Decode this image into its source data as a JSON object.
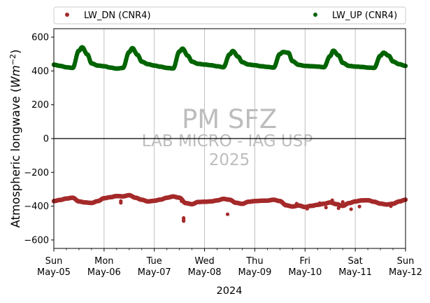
{
  "chart_data": {
    "type": "scatter",
    "xlabel": "2024",
    "ylabel_prefix": "Atmospheric longwave (",
    "ylabel_unit_w": "W",
    "ylabel_unit_m": "m",
    "ylabel_unit_exp": "−2",
    "ylabel_suffix": ")",
    "ylim": [
      -650,
      650
    ],
    "yticks": [
      -600,
      -400,
      -200,
      0,
      200,
      400,
      600
    ],
    "xlim": [
      "2024-05-05",
      "2024-05-12"
    ],
    "xticks": [
      {
        "day": "Sun",
        "date": "May-05"
      },
      {
        "day": "Mon",
        "date": "May-06"
      },
      {
        "day": "Tue",
        "date": "May-07"
      },
      {
        "day": "Wed",
        "date": "May-08"
      },
      {
        "day": "Thu",
        "date": "May-09"
      },
      {
        "day": "Fri",
        "date": "May-10"
      },
      {
        "day": "Sat",
        "date": "May-11"
      },
      {
        "day": "Sun",
        "date": "May-12"
      }
    ],
    "grid": "vertical",
    "legend_position": "top, outside",
    "watermark": [
      "PM SFZ",
      "LAB MICRO - IAG USP",
      "2025"
    ],
    "series": [
      {
        "name": "LW_DN (CNR4)",
        "color": "#a52a2a",
        "points": [
          [
            "2024-05-05 00:00",
            -370
          ],
          [
            "2024-05-05 03:00",
            -363
          ],
          [
            "2024-05-05 06:00",
            -355
          ],
          [
            "2024-05-05 09:00",
            -350
          ],
          [
            "2024-05-05 12:00",
            -372
          ],
          [
            "2024-05-05 15:00",
            -378
          ],
          [
            "2024-05-05 18:00",
            -381
          ],
          [
            "2024-05-05 21:00",
            -370
          ],
          [
            "2024-05-06 00:00",
            -353
          ],
          [
            "2024-05-06 03:00",
            -347
          ],
          [
            "2024-05-06 06:00",
            -340
          ],
          [
            "2024-05-06 09:00",
            -342
          ],
          [
            "2024-05-06 12:00",
            -335
          ],
          [
            "2024-05-06 15:00",
            -350
          ],
          [
            "2024-05-06 18:00",
            -362
          ],
          [
            "2024-05-06 21:00",
            -372
          ],
          [
            "2024-05-07 00:00",
            -368
          ],
          [
            "2024-05-07 03:00",
            -361
          ],
          [
            "2024-05-07 06:00",
            -350
          ],
          [
            "2024-05-07 09:00",
            -343
          ],
          [
            "2024-05-07 12:00",
            -350
          ],
          [
            "2024-05-07 15:00",
            -382
          ],
          [
            "2024-05-07 18:00",
            -388
          ],
          [
            "2024-05-07 21:00",
            -375
          ],
          [
            "2024-05-08 00:00",
            -374
          ],
          [
            "2024-05-08 03:00",
            -372
          ],
          [
            "2024-05-08 06:00",
            -366
          ],
          [
            "2024-05-08 09:00",
            -357
          ],
          [
            "2024-05-08 12:00",
            -362
          ],
          [
            "2024-05-08 15:00",
            -380
          ],
          [
            "2024-05-08 18:00",
            -386
          ],
          [
            "2024-05-08 21:00",
            -374
          ],
          [
            "2024-05-09 00:00",
            -370
          ],
          [
            "2024-05-09 03:00",
            -368
          ],
          [
            "2024-05-09 06:00",
            -367
          ],
          [
            "2024-05-09 09:00",
            -362
          ],
          [
            "2024-05-09 12:00",
            -370
          ],
          [
            "2024-05-09 15:00",
            -395
          ],
          [
            "2024-05-09 18:00",
            -402
          ],
          [
            "2024-05-09 21:00",
            -396
          ],
          [
            "2024-05-10 00:00",
            -405
          ],
          [
            "2024-05-10 03:00",
            -398
          ],
          [
            "2024-05-10 06:00",
            -392
          ],
          [
            "2024-05-10 09:00",
            -386
          ],
          [
            "2024-05-10 12:00",
            -378
          ],
          [
            "2024-05-10 15:00",
            -388
          ],
          [
            "2024-05-10 18:00",
            -398
          ],
          [
            "2024-05-10 21:00",
            -382
          ],
          [
            "2024-05-11 00:00",
            -372
          ],
          [
            "2024-05-11 03:00",
            -366
          ],
          [
            "2024-05-11 06:00",
            -365
          ],
          [
            "2024-05-11 09:00",
            -374
          ],
          [
            "2024-05-11 12:00",
            -385
          ],
          [
            "2024-05-11 15:00",
            -390
          ],
          [
            "2024-05-11 18:00",
            -386
          ],
          [
            "2024-05-11 21:00",
            -372
          ],
          [
            "2024-05-12 00:00",
            -362
          ]
        ],
        "outliers": [
          [
            "2024-05-06 08:00",
            -370
          ],
          [
            "2024-05-06 08:00",
            -380
          ],
          [
            "2024-05-07 14:00",
            -470
          ],
          [
            "2024-05-07 14:00",
            -480
          ],
          [
            "2024-05-07 14:00",
            -488
          ],
          [
            "2024-05-07 13:00",
            -360
          ],
          [
            "2024-05-07 13:00",
            -370
          ],
          [
            "2024-05-08 11:00",
            -448
          ],
          [
            "2024-05-09 15:00",
            -390
          ],
          [
            "2024-05-09 20:00",
            -385
          ],
          [
            "2024-05-10 01:00",
            -415
          ],
          [
            "2024-05-10 04:00",
            -400
          ],
          [
            "2024-05-10 07:00",
            -382
          ],
          [
            "2024-05-10 10:00",
            -408
          ],
          [
            "2024-05-10 13:00",
            -365
          ],
          [
            "2024-05-10 16:00",
            -412
          ],
          [
            "2024-05-10 18:00",
            -375
          ],
          [
            "2024-05-10 22:00",
            -418
          ],
          [
            "2024-05-11 02:00",
            -402
          ],
          [
            "2024-05-11 17:00",
            -400
          ],
          [
            "2024-05-11 19:00",
            -378
          ]
        ]
      },
      {
        "name": "LW_UP (CNR4)",
        "color": "#006400",
        "points": [
          [
            "2024-05-05 00:00",
            437
          ],
          [
            "2024-05-05 03:00",
            430
          ],
          [
            "2024-05-05 06:00",
            422
          ],
          [
            "2024-05-05 09:00",
            418
          ],
          [
            "2024-05-05 12:00",
            520
          ],
          [
            "2024-05-05 13:30",
            540
          ],
          [
            "2024-05-05 16:00",
            498
          ],
          [
            "2024-05-05 18:00",
            445
          ],
          [
            "2024-05-05 21:00",
            432
          ],
          [
            "2024-05-06 00:00",
            428
          ],
          [
            "2024-05-06 03:00",
            420
          ],
          [
            "2024-05-06 06:00",
            414
          ],
          [
            "2024-05-06 09:00",
            418
          ],
          [
            "2024-05-06 12:00",
            512
          ],
          [
            "2024-05-06 13:30",
            535
          ],
          [
            "2024-05-06 16:00",
            495
          ],
          [
            "2024-05-06 18:00",
            455
          ],
          [
            "2024-05-06 21:00",
            440
          ],
          [
            "2024-05-07 00:00",
            432
          ],
          [
            "2024-05-07 03:00",
            425
          ],
          [
            "2024-05-07 06:00",
            418
          ],
          [
            "2024-05-07 09:00",
            415
          ],
          [
            "2024-05-07 12:00",
            515
          ],
          [
            "2024-05-07 13:30",
            532
          ],
          [
            "2024-05-07 16:00",
            490
          ],
          [
            "2024-05-07 18:00",
            455
          ],
          [
            "2024-05-07 21:00",
            442
          ],
          [
            "2024-05-08 00:00",
            438
          ],
          [
            "2024-05-08 03:00",
            434
          ],
          [
            "2024-05-08 06:00",
            428
          ],
          [
            "2024-05-08 09:00",
            422
          ],
          [
            "2024-05-08 12:00",
            498
          ],
          [
            "2024-05-08 13:30",
            518
          ],
          [
            "2024-05-08 16:00",
            485
          ],
          [
            "2024-05-08 18:00",
            452
          ],
          [
            "2024-05-08 21:00",
            438
          ],
          [
            "2024-05-09 00:00",
            434
          ],
          [
            "2024-05-09 03:00",
            428
          ],
          [
            "2024-05-09 06:00",
            424
          ],
          [
            "2024-05-09 09:00",
            420
          ],
          [
            "2024-05-09 12:00",
            500
          ],
          [
            "2024-05-09 13:30",
            512
          ],
          [
            "2024-05-09 16:00",
            508
          ],
          [
            "2024-05-09 18:00",
            458
          ],
          [
            "2024-05-09 21:00",
            436
          ],
          [
            "2024-05-10 00:00",
            430
          ],
          [
            "2024-05-10 03:00",
            428
          ],
          [
            "2024-05-10 06:00",
            426
          ],
          [
            "2024-05-10 09:00",
            422
          ],
          [
            "2024-05-10 12:00",
            488
          ],
          [
            "2024-05-10 13:30",
            520
          ],
          [
            "2024-05-10 16:00",
            492
          ],
          [
            "2024-05-10 18:00",
            448
          ],
          [
            "2024-05-10 21:00",
            430
          ],
          [
            "2024-05-11 00:00",
            426
          ],
          [
            "2024-05-11 03:00",
            424
          ],
          [
            "2024-05-11 06:00",
            420
          ],
          [
            "2024-05-11 09:00",
            418
          ],
          [
            "2024-05-11 12:00",
            490
          ],
          [
            "2024-05-11 13:30",
            508
          ],
          [
            "2024-05-11 16:00",
            490
          ],
          [
            "2024-05-11 18:00",
            456
          ],
          [
            "2024-05-11 21:00",
            440
          ],
          [
            "2024-05-12 00:00",
            430
          ]
        ]
      }
    ]
  }
}
